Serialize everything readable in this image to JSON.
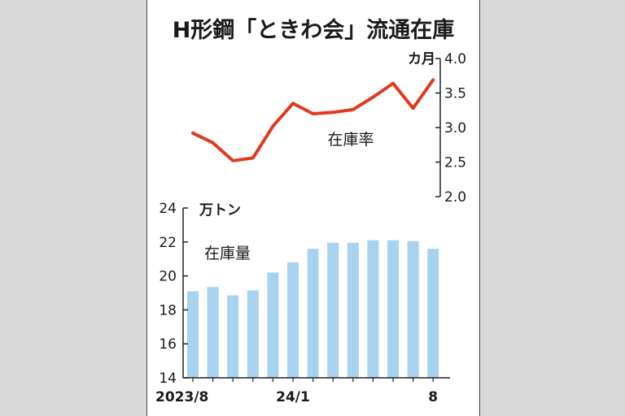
{
  "chart_title": "H形鋼「ときわ会」流通在庫",
  "colors": {
    "line": "#e03a1e",
    "bar": "#a8d3f0",
    "axis": "#222222"
  },
  "chart_data": [
    {
      "type": "line",
      "series": [
        {
          "name": "在庫率",
          "values": [
            2.92,
            2.78,
            2.52,
            2.56,
            3.02,
            3.35,
            3.2,
            3.22,
            3.26,
            3.44,
            3.64,
            3.28,
            3.69
          ]
        }
      ],
      "y_unit": "カ月",
      "y_ticks": [
        "4.0",
        "3.5",
        "3.0",
        "2.5",
        "2.0"
      ],
      "ylim": [
        2.0,
        4.0
      ],
      "axis_side": "right"
    },
    {
      "type": "bar",
      "series": [
        {
          "name": "在庫量",
          "values": [
            19.1,
            19.35,
            18.85,
            19.15,
            20.2,
            20.8,
            21.6,
            21.95,
            21.95,
            22.1,
            22.1,
            22.05,
            21.6
          ]
        }
      ],
      "y_unit": "万トン",
      "y_ticks": [
        "24",
        "22",
        "20",
        "18",
        "16",
        "14"
      ],
      "ylim": [
        14,
        24
      ],
      "axis_side": "left"
    }
  ],
  "x_tick_labels": [
    "2023/8",
    "24/1",
    "8"
  ],
  "x_tick_months": [
    0,
    5,
    12
  ],
  "months_count": 13
}
